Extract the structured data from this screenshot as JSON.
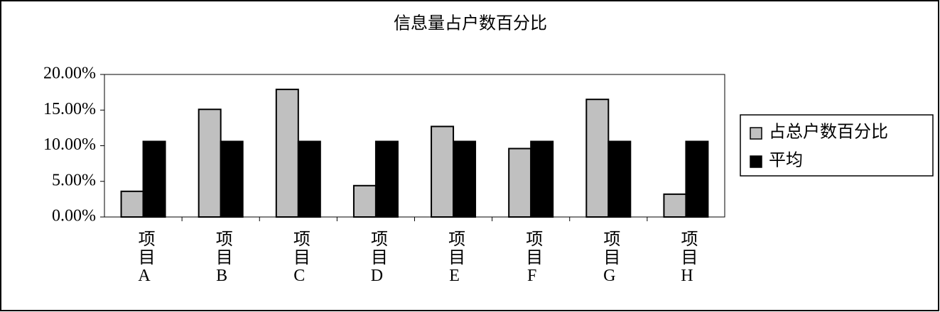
{
  "chart_data": {
    "type": "bar",
    "title": "信息量占户数百分比",
    "categories": [
      "项目A",
      "项目B",
      "项目C",
      "项目D",
      "项目E",
      "项目F",
      "项目G",
      "项目H"
    ],
    "series": [
      {
        "name": "占总户数百分比",
        "color": "#c0c0c0",
        "values": [
          3.6,
          15.1,
          17.9,
          4.4,
          12.7,
          9.6,
          16.5,
          3.2
        ]
      },
      {
        "name": "平均",
        "color": "#000000",
        "values": [
          10.6,
          10.6,
          10.6,
          10.6,
          10.6,
          10.6,
          10.6,
          10.6
        ]
      }
    ],
    "ylim": [
      0,
      20
    ],
    "yticks": [
      {
        "value": 0,
        "label": "0.00%"
      },
      {
        "value": 5,
        "label": "5.00%"
      },
      {
        "value": 10,
        "label": "10.00%"
      },
      {
        "value": 15,
        "label": "15.00%"
      },
      {
        "value": 20,
        "label": "20.00%"
      }
    ],
    "grid": false,
    "legend": "right"
  }
}
